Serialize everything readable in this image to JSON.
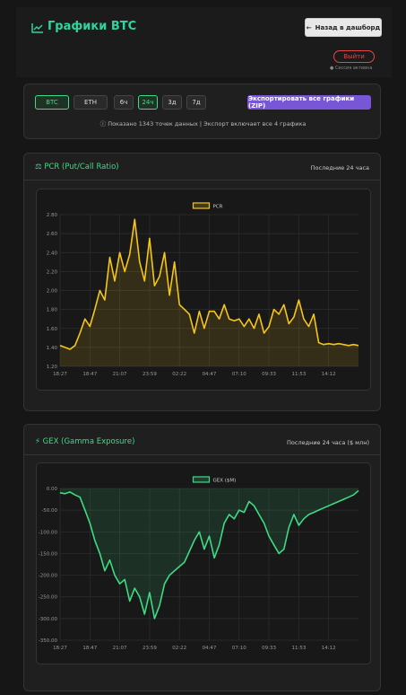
{
  "header": {
    "title": "Графики BTC",
    "back_button": "Назад в дашборд",
    "logout_button": "Выйти",
    "session_status": "Сессия активна"
  },
  "controls": {
    "assets": [
      "BTC",
      "ETH"
    ],
    "active_asset": "BTC",
    "periods": [
      "6ч",
      "24ч",
      "3д",
      "7д"
    ],
    "active_period": "24ч",
    "export_button": "Экспортировать все графики (ZIP)",
    "info": "Показано 1343 точек данных | Экспорт включает все 4 графика"
  },
  "chart_data": [
    {
      "type": "line",
      "title": "PCR (Put/Call Ratio)",
      "subtitle": "Последние 24 часа",
      "fill": true,
      "grid": true,
      "categories": [
        "18:27",
        null,
        null,
        null,
        null,
        null,
        "18:47",
        null,
        null,
        null,
        null,
        null,
        "21:07",
        null,
        null,
        null,
        null,
        null,
        "23:59",
        null,
        null,
        null,
        null,
        null,
        "02:22",
        null,
        null,
        null,
        null,
        null,
        "04:47",
        null,
        null,
        null,
        null,
        null,
        "07:10",
        null,
        null,
        null,
        null,
        null,
        "09:33",
        null,
        null,
        null,
        null,
        null,
        "11:53",
        null,
        null,
        null,
        null,
        null,
        "14:12",
        null,
        null,
        null,
        null,
        null,
        null
      ],
      "series": [
        {
          "name": "PCR",
          "color": "#f5c518",
          "values": [
            1.42,
            1.4,
            1.38,
            1.42,
            1.55,
            1.7,
            1.62,
            1.8,
            2.0,
            1.9,
            2.35,
            2.1,
            2.4,
            2.2,
            2.38,
            2.75,
            2.3,
            2.1,
            2.55,
            2.05,
            2.15,
            2.4,
            1.95,
            2.3,
            1.85,
            1.8,
            1.75,
            1.55,
            1.78,
            1.6,
            1.78,
            1.78,
            1.7,
            1.85,
            1.7,
            1.68,
            1.7,
            1.62,
            1.7,
            1.6,
            1.75,
            1.55,
            1.62,
            1.8,
            1.75,
            1.85,
            1.65,
            1.72,
            1.9,
            1.7,
            1.62,
            1.75,
            1.45,
            1.43,
            1.44,
            1.43,
            1.44,
            1.43,
            1.42,
            1.43,
            1.42
          ]
        }
      ],
      "ylim": [
        1.2,
        2.8
      ],
      "yticks": [
        {
          "value": 1.2,
          "label": "1.20"
        },
        {
          "value": 1.4,
          "label": "1.40"
        },
        {
          "value": 1.6,
          "label": "1.60"
        },
        {
          "value": 1.8,
          "label": "1.80"
        },
        {
          "value": 2.0,
          "label": "2.00"
        },
        {
          "value": 2.2,
          "label": "2.20"
        },
        {
          "value": 2.4,
          "label": "2.40"
        },
        {
          "value": 2.6,
          "label": "2.60"
        },
        {
          "value": 2.8,
          "label": "2.80"
        }
      ]
    },
    {
      "type": "line",
      "title": "GEX (Gamma Exposure)",
      "subtitle": "Последние 24 часа ($ млн)",
      "fill": true,
      "grid": true,
      "categories": [
        "18:27",
        null,
        null,
        null,
        null,
        null,
        "18:47",
        null,
        null,
        null,
        null,
        null,
        "21:07",
        null,
        null,
        null,
        null,
        null,
        "23:59",
        null,
        null,
        null,
        null,
        null,
        "02:22",
        null,
        null,
        null,
        null,
        null,
        "04:47",
        null,
        null,
        null,
        null,
        null,
        "07:10",
        null,
        null,
        null,
        null,
        null,
        "09:33",
        null,
        null,
        null,
        null,
        null,
        "11:53",
        null,
        null,
        null,
        null,
        null,
        "14:12",
        null,
        null,
        null,
        null,
        null,
        null
      ],
      "series": [
        {
          "name": "GEX ($M)",
          "color": "#3ddc84",
          "values": [
            -10,
            -12,
            -8,
            -15,
            -20,
            -50,
            -80,
            -120,
            -150,
            -190,
            -165,
            -200,
            -220,
            -210,
            -260,
            -230,
            -250,
            -290,
            -240,
            -300,
            -270,
            -220,
            -200,
            -190,
            -180,
            -170,
            -145,
            -120,
            -100,
            -140,
            -110,
            -160,
            -130,
            -80,
            -60,
            -70,
            -50,
            -55,
            -30,
            -40,
            -60,
            -80,
            -110,
            -130,
            -150,
            -140,
            -90,
            -60,
            -85,
            -70,
            -60,
            -55,
            -50,
            -45,
            -40,
            -35,
            -30,
            -25,
            -20,
            -15,
            -5
          ]
        }
      ],
      "ylim": [
        -350,
        0
      ],
      "yticks": [
        {
          "value": 0,
          "label": "0.00"
        },
        {
          "value": -50,
          "label": "-50.00"
        },
        {
          "value": -100,
          "label": "-100.00"
        },
        {
          "value": -150,
          "label": "-150.00"
        },
        {
          "value": -200,
          "label": "-200.00"
        },
        {
          "value": -250,
          "label": "-250.00"
        },
        {
          "value": -300,
          "label": "-300.00"
        },
        {
          "value": -350,
          "label": "-350.00"
        }
      ]
    }
  ]
}
